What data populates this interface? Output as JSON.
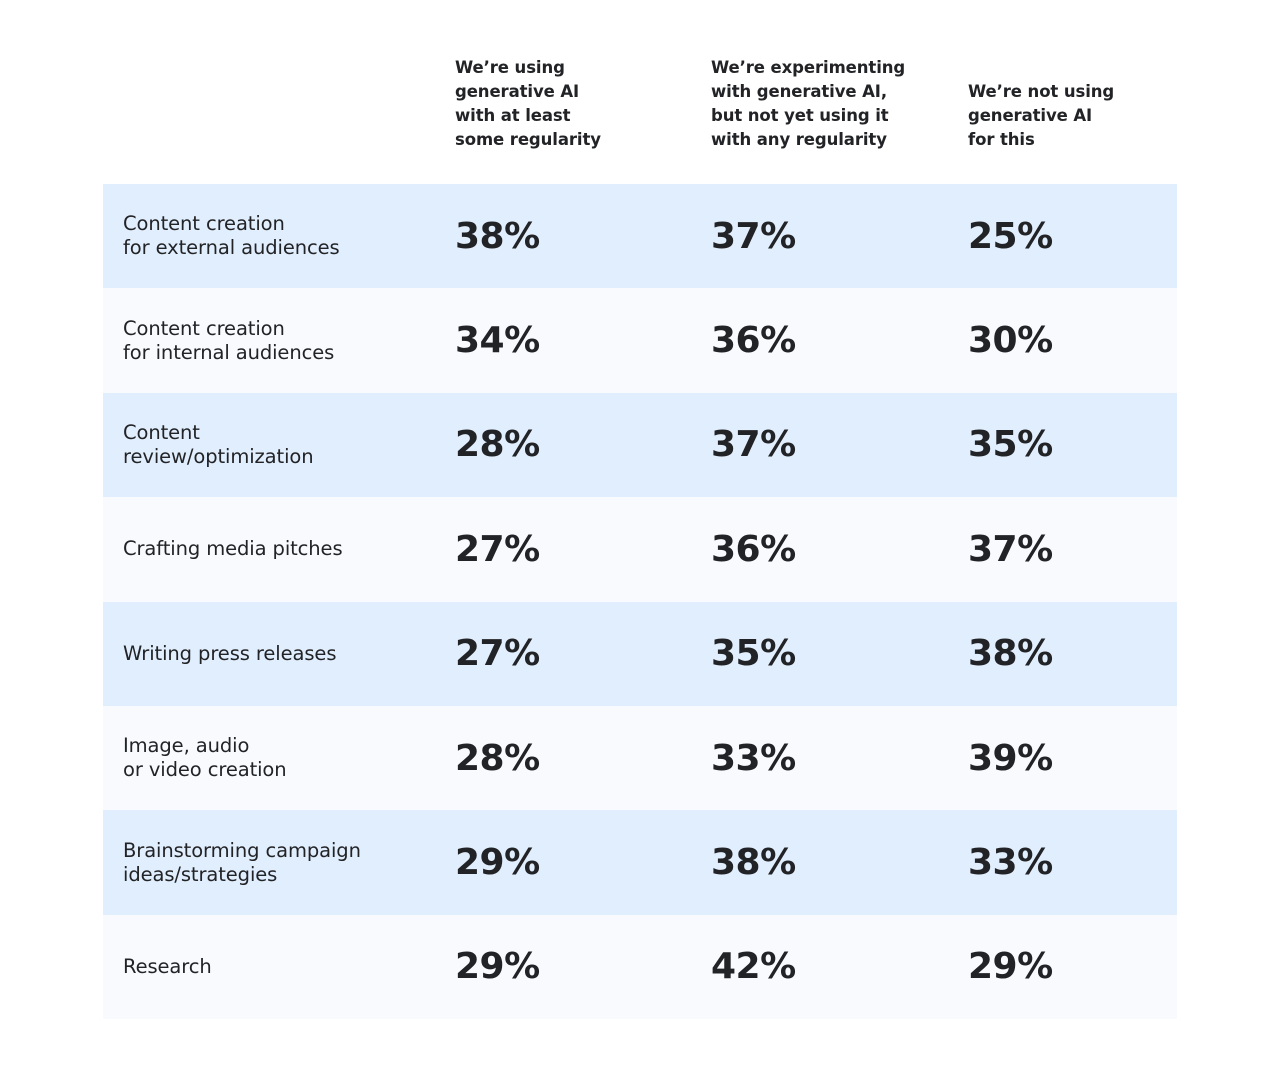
{
  "chart_data": {
    "type": "table",
    "columns": [
      "We’re using\ngenerative AI\nwith at least\nsome regularity",
      "We’re experimenting\nwith generative AI,\nbut not yet using it\nwith any regularity",
      "We’re not using\ngenerative AI\nfor this"
    ],
    "rows": [
      {
        "label": "Content creation\nfor external audiences",
        "values": [
          "38%",
          "37%",
          "25%"
        ]
      },
      {
        "label": "Content creation\nfor internal audiences",
        "values": [
          "34%",
          "36%",
          "30%"
        ]
      },
      {
        "label": "Content\nreview/optimization",
        "values": [
          "28%",
          "37%",
          "35%"
        ]
      },
      {
        "label": "Crafting media pitches",
        "values": [
          "27%",
          "36%",
          "37%"
        ]
      },
      {
        "label": "Writing press releases",
        "values": [
          "27%",
          "35%",
          "38%"
        ]
      },
      {
        "label": "Image, audio\nor video creation",
        "values": [
          "28%",
          "33%",
          "39%"
        ]
      },
      {
        "label": "Brainstorming campaign\nideas/strategies",
        "values": [
          "29%",
          "38%",
          "33%"
        ]
      },
      {
        "label": "Research",
        "values": [
          "29%",
          "42%",
          "29%"
        ]
      }
    ],
    "colors": {
      "row_alt_1": "#E1EEFD",
      "row_alt_2": "#F8FAFE",
      "text": "#222326"
    }
  }
}
